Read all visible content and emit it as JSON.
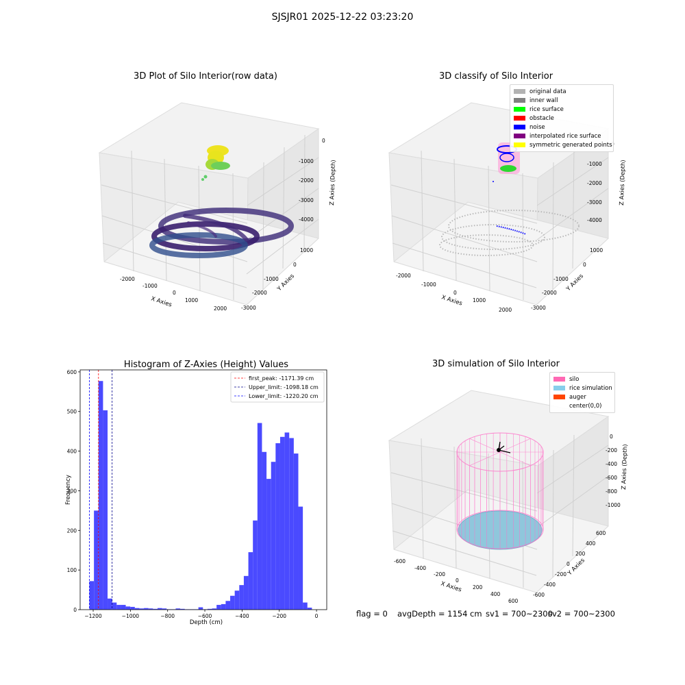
{
  "suptitle": "SJSJR01 2025-12-22 03:23:20",
  "panel1": {
    "title": "3D Plot of Silo Interior(row data)",
    "xlabel": "X Axies",
    "ylabel": "Y Axies",
    "zlabel": "Z Axies (Depth)",
    "xticks": [
      "-2000",
      "-1000",
      "0",
      "1000",
      "2000"
    ],
    "yticks": [
      "1000",
      "0",
      "-1000",
      "-2000",
      "-3000"
    ],
    "zticks": [
      "0",
      "-1000",
      "-2000",
      "-3000",
      "-4000"
    ]
  },
  "panel2": {
    "title": "3D classify of Silo Interior",
    "xlabel": "X Axies",
    "ylabel": "Y Axies",
    "zlabel": "Z Axies (Depth)",
    "xticks": [
      "-2000",
      "-1000",
      "0",
      "1000",
      "2000"
    ],
    "yticks": [
      "1000",
      "0",
      "-1000",
      "-2000",
      "-3000"
    ],
    "zticks": [
      "0",
      "-1000",
      "-2000",
      "-3000",
      "-4000"
    ],
    "legend": [
      {
        "label": "original data",
        "color": "#b3b3b3"
      },
      {
        "label": "inner wall",
        "color": "#808080"
      },
      {
        "label": "rice surface",
        "color": "#00ff00"
      },
      {
        "label": "obstacle",
        "color": "#ff0000"
      },
      {
        "label": "noise",
        "color": "#0000ff"
      },
      {
        "label": "interpolated rice surface",
        "color": "#800080"
      },
      {
        "label": "symmetric generated points",
        "color": "#ffff00"
      }
    ]
  },
  "panel4": {
    "title": "3D simulation of Silo Interior",
    "xlabel": "X Axies",
    "ylabel": "Y Axies",
    "zlabel": "Z Axies (Depth)",
    "xticks": [
      "-600",
      "-400",
      "-200",
      "0",
      "200",
      "400",
      "600"
    ],
    "yticks": [
      "600",
      "400",
      "200",
      "0",
      "-200",
      "-400",
      "-600"
    ],
    "zticks": [
      "0",
      "-200",
      "-400",
      "-600",
      "-800",
      "-1000"
    ],
    "legend": [
      {
        "label": "silo",
        "color": "#ff69b4"
      },
      {
        "label": "rice simulation",
        "color": "#87ceeb"
      },
      {
        "label": "auger",
        "color": "#ff4500"
      },
      {
        "label": "center(0,0)",
        "color": ""
      }
    ]
  },
  "footer": {
    "flag": "flag = 0",
    "avg": "avgDepth = 1154 cm",
    "sv1": "sv1 = 700~2300",
    "sv2": "sv2 = 700~2300"
  },
  "chart_data": {
    "type": "bar",
    "title": "Histogram of Z-Axies (Height) Values",
    "xlabel": "Depth (cm)",
    "ylabel": "Frequency",
    "xlim": [
      -1270,
      55
    ],
    "ylim": [
      0,
      605
    ],
    "xticks": [
      -1200,
      -1000,
      -800,
      -600,
      -400,
      -200,
      0
    ],
    "yticks": [
      0,
      100,
      200,
      300,
      400,
      500,
      600
    ],
    "bin_start": -1220.2,
    "bin_width": 24.4,
    "bar_color": "#4a4aff",
    "values": [
      72,
      250,
      577,
      503,
      28,
      18,
      12,
      12,
      8,
      7,
      4,
      3,
      4,
      3,
      2,
      4,
      3,
      1,
      1,
      3,
      2,
      1,
      1,
      1,
      6,
      1,
      2,
      3,
      12,
      14,
      22,
      35,
      48,
      62,
      85,
      145,
      225,
      471,
      398,
      330,
      373,
      420,
      436,
      447,
      433,
      394,
      260,
      18,
      5
    ],
    "vlines": [
      {
        "label": "first_peak: -1171.39 cm",
        "x": -1171.39,
        "color": "#ff0000"
      },
      {
        "label": "Upper_limit: -1098.18 cm",
        "x": -1098.18,
        "color": "#00008b"
      },
      {
        "label": "Lower_limit: -1220.20 cm",
        "x": -1220.2,
        "color": "#0000ff"
      }
    ]
  }
}
